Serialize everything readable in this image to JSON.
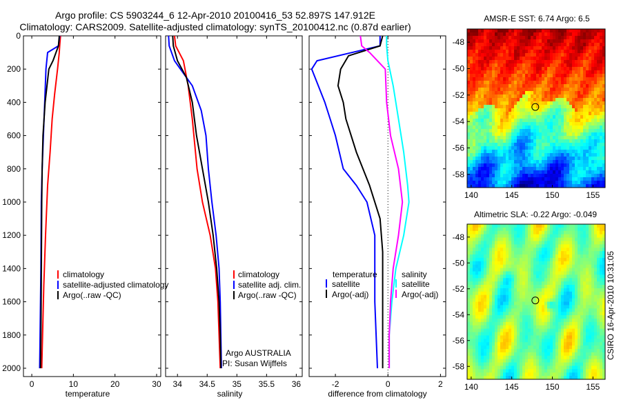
{
  "figure": {
    "title_line1": "Argo profile: CS 5903244_6 12-Apr-2010 20100416_53 52.897S 147.912E",
    "title_line2": "Climatology: CARS2009. Satellite-adjusted climatology: synTS_20100412.nc (0.87d earlier)",
    "side_credit": "CSIRO 16-Apr-2010 10:31:05",
    "colors": {
      "red": "#ff0000",
      "blue": "#0000ff",
      "black": "#000000",
      "cyan": "#00ffff",
      "magenta": "#ff00ff",
      "dotted": "#000000"
    }
  },
  "chart_data": [
    {
      "id": "temperature",
      "type": "line",
      "xlabel": "temperature",
      "xlim": [
        -2,
        31
      ],
      "ylim": [
        0,
        2050
      ],
      "y_reversed": true,
      "xticks": [
        "0",
        "10",
        "20",
        "30"
      ],
      "yticks": [
        "0",
        "200",
        "400",
        "600",
        "800",
        "1000",
        "1200",
        "1400",
        "1600",
        "1800",
        "2000"
      ],
      "legend": [
        "climatology",
        "satellite-adjusted climatology",
        "Argo(..raw -QC)"
      ],
      "series": [
        {
          "name": "climatology",
          "color": "red",
          "points": [
            [
              6.9,
              0
            ],
            [
              6.7,
              60
            ],
            [
              6.6,
              100
            ],
            [
              6.2,
              200
            ],
            [
              5.5,
              350
            ],
            [
              4.9,
              500
            ],
            [
              4.4,
              700
            ],
            [
              3.8,
              900
            ],
            [
              3.3,
              1200
            ],
            [
              2.9,
              1500
            ],
            [
              2.6,
              1800
            ],
            [
              2.4,
              2000
            ]
          ]
        },
        {
          "name": "satellite-adjusted climatology",
          "color": "blue",
          "points": [
            [
              6.7,
              0
            ],
            [
              6.4,
              60
            ],
            [
              3.8,
              100
            ],
            [
              3.4,
              200
            ],
            [
              3.1,
              400
            ],
            [
              2.8,
              600
            ],
            [
              2.5,
              800
            ],
            [
              2.3,
              1000
            ],
            [
              2.2,
              1400
            ],
            [
              2.0,
              1800
            ],
            [
              1.9,
              2000
            ]
          ]
        },
        {
          "name": "Argo(..raw -QC)",
          "color": "black",
          "points": [
            [
              6.6,
              0
            ],
            [
              6.4,
              60
            ],
            [
              5.1,
              150
            ],
            [
              4.1,
              200
            ],
            [
              3.2,
              400
            ],
            [
              2.7,
              600
            ],
            [
              2.5,
              800
            ],
            [
              2.4,
              1000
            ],
            [
              2.3,
              1400
            ],
            [
              2.2,
              1800
            ],
            [
              2.1,
              2000
            ]
          ]
        }
      ]
    },
    {
      "id": "salinity",
      "type": "line",
      "xlabel": "salinity",
      "xlim": [
        33.8,
        36.1
      ],
      "ylim": [
        0,
        2050
      ],
      "y_reversed": true,
      "xticks": [
        "34",
        "34.5",
        "35",
        "35.5",
        "36"
      ],
      "legend": [
        "climatology",
        "satellite adj. clim.",
        "Argo(..raw -QC)"
      ],
      "annotation": [
        "Argo AUSTRALIA",
        "PI: Susan Wijffels"
      ],
      "series": [
        {
          "name": "climatology",
          "color": "red",
          "points": [
            [
              33.95,
              0
            ],
            [
              33.97,
              60
            ],
            [
              34.1,
              150
            ],
            [
              34.18,
              300
            ],
            [
              34.25,
              500
            ],
            [
              34.33,
              800
            ],
            [
              34.42,
              1000
            ],
            [
              34.55,
              1200
            ],
            [
              34.64,
              1400
            ],
            [
              34.68,
              1600
            ],
            [
              34.7,
              1800
            ],
            [
              34.72,
              2000
            ]
          ]
        },
        {
          "name": "satellite adj. clim.",
          "color": "blue",
          "points": [
            [
              33.85,
              0
            ],
            [
              33.86,
              60
            ],
            [
              33.95,
              150
            ],
            [
              34.25,
              300
            ],
            [
              34.4,
              450
            ],
            [
              34.48,
              600
            ],
            [
              34.52,
              800
            ],
            [
              34.58,
              1000
            ],
            [
              34.65,
              1200
            ],
            [
              34.7,
              1400
            ],
            [
              34.72,
              1600
            ],
            [
              34.74,
              2000
            ]
          ]
        },
        {
          "name": "Argo(..raw -QC)",
          "color": "black",
          "points": [
            [
              33.92,
              0
            ],
            [
              33.93,
              60
            ],
            [
              34.0,
              150
            ],
            [
              34.15,
              250
            ],
            [
              34.25,
              400
            ],
            [
              34.32,
              600
            ],
            [
              34.42,
              800
            ],
            [
              34.52,
              1000
            ],
            [
              34.6,
              1200
            ],
            [
              34.66,
              1400
            ],
            [
              34.7,
              1600
            ],
            [
              34.72,
              1800
            ],
            [
              34.73,
              2000
            ]
          ]
        }
      ]
    },
    {
      "id": "difference",
      "type": "line",
      "xlabel": "difference from climatology",
      "xlim": [
        -3,
        2.2
      ],
      "ylim": [
        0,
        2050
      ],
      "y_reversed": true,
      "xticks": [
        "-2",
        "0",
        "2"
      ],
      "legend_left_title": "temperature",
      "legend_left": [
        "satellite",
        "Argo(-adj)"
      ],
      "legend_right_title": "salinity",
      "legend_right": [
        "satellite",
        "Argo(-adj)"
      ],
      "series": [
        {
          "name": "temperature satellite",
          "color": "blue",
          "points": [
            [
              -0.3,
              0
            ],
            [
              -0.3,
              60
            ],
            [
              -2.7,
              150
            ],
            [
              -2.9,
              200
            ],
            [
              -2.4,
              400
            ],
            [
              -2.2,
              500
            ],
            [
              -2.0,
              600
            ],
            [
              -1.7,
              800
            ],
            [
              -1.2,
              900
            ],
            [
              -0.8,
              1000
            ],
            [
              -0.5,
              1200
            ],
            [
              -0.5,
              1400
            ],
            [
              -0.5,
              1600
            ],
            [
              -0.4,
              2000
            ]
          ]
        },
        {
          "name": "temperature Argo(-adj)",
          "color": "black",
          "points": [
            [
              -0.2,
              0
            ],
            [
              -0.3,
              60
            ],
            [
              -1.5,
              120
            ],
            [
              -1.8,
              200
            ],
            [
              -1.9,
              300
            ],
            [
              -1.7,
              400
            ],
            [
              -1.6,
              500
            ],
            [
              -1.2,
              700
            ],
            [
              -0.7,
              900
            ],
            [
              -0.3,
              1100
            ],
            [
              -0.2,
              1300
            ],
            [
              -0.2,
              1600
            ],
            [
              -0.2,
              2000
            ]
          ]
        },
        {
          "name": "salinity satellite",
          "color": "cyan",
          "points": [
            [
              -0.05,
              0
            ],
            [
              -0.05,
              60
            ],
            [
              0.0,
              150
            ],
            [
              0.2,
              300
            ],
            [
              0.4,
              500
            ],
            [
              0.6,
              700
            ],
            [
              0.75,
              900
            ],
            [
              0.8,
              1000
            ],
            [
              0.6,
              1200
            ],
            [
              0.3,
              1400
            ],
            [
              0.15,
              1600
            ],
            [
              0.05,
              1800
            ],
            [
              0.05,
              2000
            ]
          ]
        },
        {
          "name": "salinity Argo(-adj)",
          "color": "magenta",
          "points": [
            [
              -1.05,
              0
            ],
            [
              -1.0,
              60
            ],
            [
              -0.7,
              100
            ],
            [
              -0.1,
              200
            ],
            [
              -0.05,
              400
            ],
            [
              0.1,
              600
            ],
            [
              0.4,
              800
            ],
            [
              0.55,
              1000
            ],
            [
              0.4,
              1200
            ],
            [
              0.2,
              1400
            ],
            [
              0.1,
              1600
            ],
            [
              0.05,
              1800
            ],
            [
              0.05,
              2000
            ]
          ]
        }
      ]
    },
    {
      "id": "sst_map",
      "type": "heatmap",
      "title": "AMSR-E SST: 6.74 Argo: 6.5",
      "xlim": [
        139.5,
        156.5
      ],
      "ylim": [
        -59,
        -47
      ],
      "xticks": [
        "140",
        "145",
        "150",
        "155"
      ],
      "yticks": [
        "-48",
        "-50",
        "-52",
        "-54",
        "-56",
        "-58"
      ],
      "marker": {
        "lon": 147.9,
        "lat": -52.9
      }
    },
    {
      "id": "sla_map",
      "type": "heatmap",
      "title": "Altimetric SLA: -0.22 Argo: -0.049",
      "xlim": [
        139.5,
        156.5
      ],
      "ylim": [
        -59,
        -47
      ],
      "xticks": [
        "140",
        "145",
        "150",
        "155"
      ],
      "yticks": [
        "-48",
        "-50",
        "-52",
        "-54",
        "-56",
        "-58"
      ],
      "marker": {
        "lon": 147.9,
        "lat": -52.9
      }
    }
  ]
}
